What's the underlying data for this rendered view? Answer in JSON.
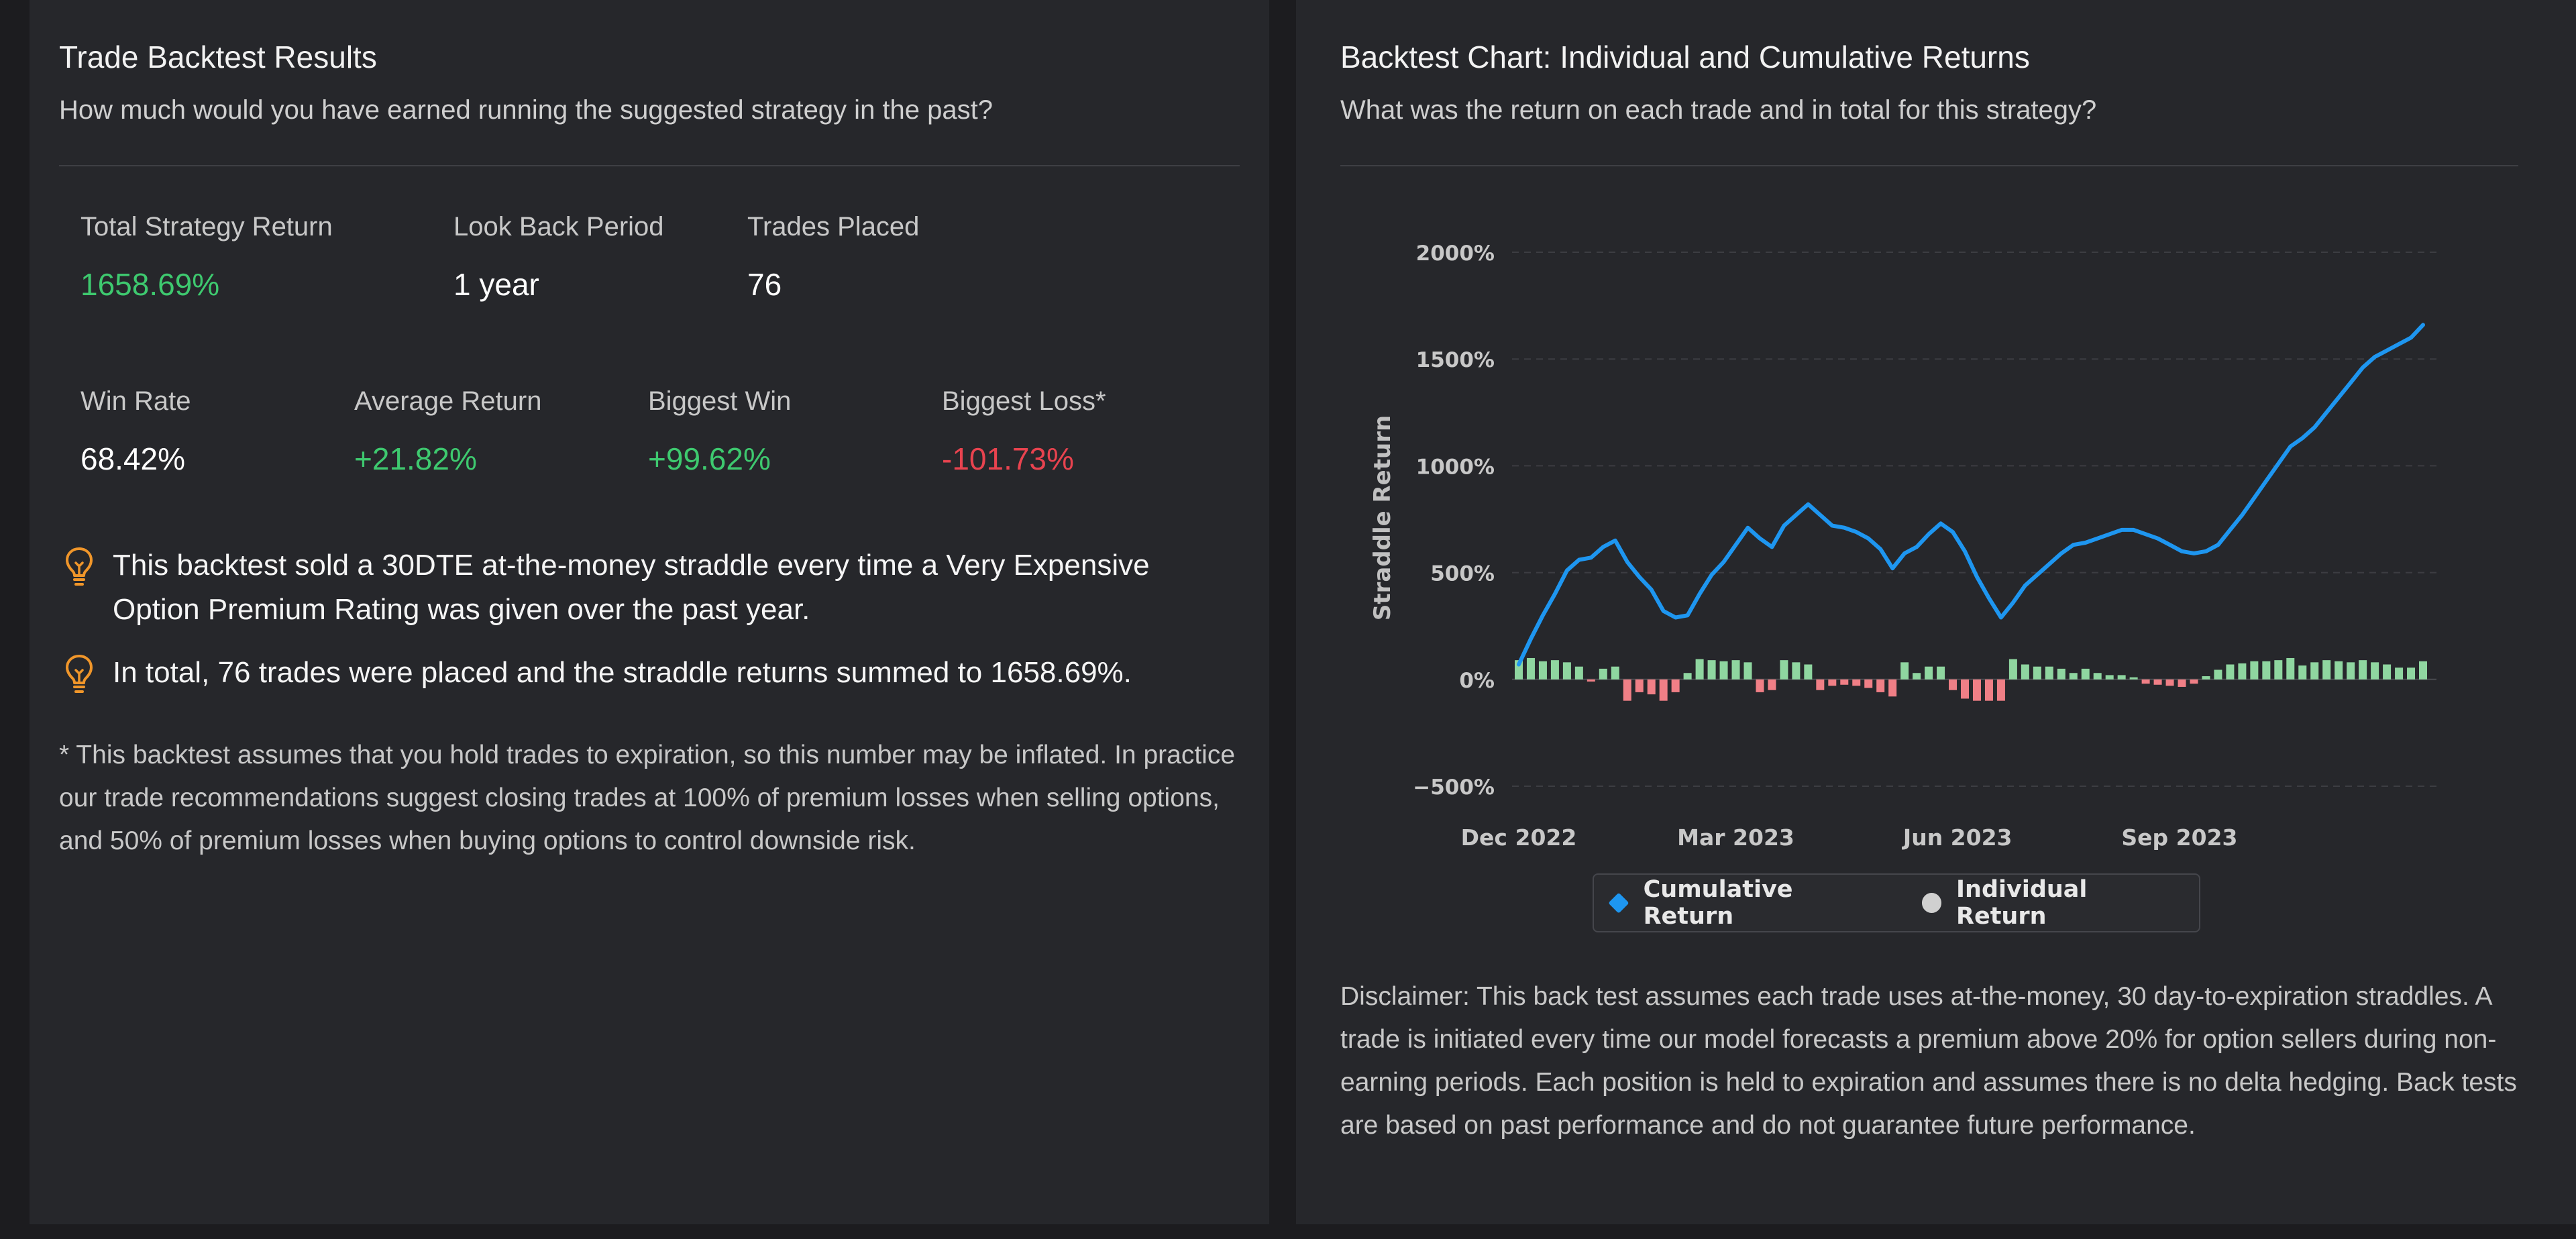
{
  "left": {
    "title": "Trade Backtest Results",
    "subtitle": "How much would you have earned running the suggested strategy in the past?",
    "stats_row1": [
      {
        "label": "Total Strategy Return",
        "value": "1658.69%",
        "tone": "pos"
      },
      {
        "label": "Look Back Period",
        "value": "1 year",
        "tone": "neutral"
      },
      {
        "label": "Trades Placed",
        "value": "76",
        "tone": "neutral"
      }
    ],
    "stats_row2": [
      {
        "label": "Win Rate",
        "value": "68.42%",
        "tone": "neutral"
      },
      {
        "label": "Average Return",
        "value": "+21.82%",
        "tone": "pos"
      },
      {
        "label": "Biggest Win",
        "value": "+99.62%",
        "tone": "pos"
      },
      {
        "label": "Biggest Loss*",
        "value": "-101.73%",
        "tone": "neg"
      }
    ],
    "tips": [
      "This backtest sold a 30DTE at-the-money straddle every time a Very Expensive Option Premium Rating was given over the past year.",
      "In total, 76 trades were placed and the straddle returns summed to 1658.69%."
    ],
    "footnote": "* This backtest assumes that you hold trades to expiration, so this number may be inflated. In practice our trade recommendations suggest closing trades at 100% of premium losses when selling options, and 50% of premium losses when buying options to control downside risk."
  },
  "right": {
    "title": "Backtest Chart: Individual and Cumulative Returns",
    "subtitle": "What was the return on each trade and in total for this strategy?",
    "disclaimer": "Disclaimer: This back test assumes each trade uses at-the-money, 30 day-to-expiration straddles. A trade is initiated every time our model forecasts a premium above 20% for option sellers during non-earning periods. Each position is held to expiration and assumes there is no delta hedging. Back tests are based on past performance and do not guarantee future performance."
  },
  "colors": {
    "cumulative": "#1e96f0",
    "individual_pos": "#8fd6a0",
    "individual_neg": "#f07f86",
    "legend_individual": "#d0d0d0",
    "positive_text": "#3ec96f",
    "negative_text": "#e8434f",
    "tip_icon": "#f0962a"
  },
  "icons": {
    "tip": "lightbulb-icon"
  },
  "chart_data": {
    "type": "line",
    "ylabel": "Straddle Return",
    "xlabel": "",
    "ylim": [
      -500,
      2000
    ],
    "yticks": [
      -500,
      0,
      500,
      1000,
      1500,
      2000
    ],
    "ytick_labels": [
      "−500%",
      "0%",
      "500%",
      "1000%",
      "1500%",
      "2000%"
    ],
    "xticks": [
      {
        "date": "2022-12-01",
        "label": "Dec 2022"
      },
      {
        "date": "2023-03-01",
        "label": "Mar 2023"
      },
      {
        "date": "2023-06-01",
        "label": "Jun 2023"
      },
      {
        "date": "2023-09-01",
        "label": "Sep 2023"
      }
    ],
    "x_range": [
      "2022-12-01",
      "2023-12-11"
    ],
    "grid": true,
    "legend": "bottom",
    "series": [
      {
        "name": "Cumulative Return",
        "kind": "line",
        "dates": [
          "2022-12-01",
          "2022-12-06",
          "2022-12-11",
          "2022-12-16",
          "2022-12-21",
          "2022-12-26",
          "2022-12-31",
          "2023-01-05",
          "2023-01-10",
          "2023-01-15",
          "2023-01-20",
          "2023-01-25",
          "2023-01-30",
          "2023-02-04",
          "2023-02-09",
          "2023-02-14",
          "2023-02-19",
          "2023-02-24",
          "2023-03-01",
          "2023-03-06",
          "2023-03-11",
          "2023-03-16",
          "2023-03-21",
          "2023-03-26",
          "2023-03-31",
          "2023-04-05",
          "2023-04-10",
          "2023-04-15",
          "2023-04-20",
          "2023-04-25",
          "2023-04-30",
          "2023-05-05",
          "2023-05-10",
          "2023-05-15",
          "2023-05-20",
          "2023-05-25",
          "2023-05-30",
          "2023-06-04",
          "2023-06-09",
          "2023-06-14",
          "2023-06-19",
          "2023-06-24",
          "2023-06-29",
          "2023-07-04",
          "2023-07-09",
          "2023-07-14",
          "2023-07-19",
          "2023-07-24",
          "2023-07-29",
          "2023-08-03",
          "2023-08-08",
          "2023-08-13",
          "2023-08-18",
          "2023-08-23",
          "2023-08-28",
          "2023-09-02",
          "2023-09-07",
          "2023-09-12",
          "2023-09-17",
          "2023-09-22",
          "2023-09-27",
          "2023-10-02",
          "2023-10-07",
          "2023-10-12",
          "2023-10-17",
          "2023-10-22",
          "2023-10-27",
          "2023-11-01",
          "2023-11-06",
          "2023-11-11",
          "2023-11-16",
          "2023-11-21",
          "2023-11-26",
          "2023-12-01",
          "2023-12-06",
          "2023-12-11"
        ],
        "values": [
          70,
          190,
          300,
          400,
          510,
          560,
          570,
          620,
          650,
          550,
          480,
          420,
          320,
          290,
          300,
          400,
          490,
          550,
          630,
          710,
          660,
          620,
          720,
          770,
          820,
          770,
          720,
          710,
          690,
          660,
          610,
          520,
          590,
          620,
          680,
          730,
          690,
          600,
          480,
          380,
          290,
          360,
          440,
          490,
          540,
          590,
          630,
          640,
          660,
          680,
          700,
          700,
          680,
          660,
          630,
          600,
          590,
          600,
          630,
          700,
          770,
          850,
          930,
          1010,
          1090,
          1130,
          1180,
          1250,
          1320,
          1390,
          1460,
          1510,
          1540,
          1570,
          1600,
          1660
        ]
      },
      {
        "name": "Individual Return",
        "kind": "bar",
        "dates": [
          "2022-12-01",
          "2022-12-06",
          "2022-12-11",
          "2022-12-16",
          "2022-12-21",
          "2022-12-26",
          "2022-12-31",
          "2023-01-05",
          "2023-01-10",
          "2023-01-15",
          "2023-01-20",
          "2023-01-25",
          "2023-01-30",
          "2023-02-04",
          "2023-02-09",
          "2023-02-14",
          "2023-02-19",
          "2023-02-24",
          "2023-03-01",
          "2023-03-06",
          "2023-03-11",
          "2023-03-16",
          "2023-03-21",
          "2023-03-26",
          "2023-03-31",
          "2023-04-05",
          "2023-04-10",
          "2023-04-15",
          "2023-04-20",
          "2023-04-25",
          "2023-04-30",
          "2023-05-05",
          "2023-05-10",
          "2023-05-15",
          "2023-05-20",
          "2023-05-25",
          "2023-05-30",
          "2023-06-04",
          "2023-06-09",
          "2023-06-14",
          "2023-06-19",
          "2023-06-24",
          "2023-06-29",
          "2023-07-04",
          "2023-07-09",
          "2023-07-14",
          "2023-07-19",
          "2023-07-24",
          "2023-07-29",
          "2023-08-03",
          "2023-08-08",
          "2023-08-13",
          "2023-08-18",
          "2023-08-23",
          "2023-08-28",
          "2023-09-02",
          "2023-09-07",
          "2023-09-12",
          "2023-09-17",
          "2023-09-22",
          "2023-09-27",
          "2023-10-02",
          "2023-10-07",
          "2023-10-12",
          "2023-10-17",
          "2023-10-22",
          "2023-10-27",
          "2023-11-01",
          "2023-11-06",
          "2023-11-11",
          "2023-11-16",
          "2023-11-21",
          "2023-11-26",
          "2023-12-01",
          "2023-12-06",
          "2023-12-11"
        ],
        "values": [
          90,
          100,
          85,
          90,
          80,
          60,
          -10,
          50,
          60,
          -100,
          -60,
          -70,
          -100,
          -60,
          30,
          95,
          90,
          85,
          90,
          80,
          -60,
          -50,
          90,
          80,
          70,
          -50,
          -30,
          -25,
          -30,
          -40,
          -60,
          -80,
          80,
          30,
          60,
          60,
          -50,
          -90,
          -100,
          -100,
          -100,
          95,
          70,
          60,
          60,
          50,
          30,
          50,
          30,
          20,
          20,
          10,
          -20,
          -25,
          -30,
          -35,
          -20,
          15,
          45,
          70,
          75,
          85,
          85,
          90,
          100,
          65,
          80,
          90,
          85,
          80,
          90,
          80,
          70,
          55,
          55,
          85
        ]
      }
    ]
  }
}
